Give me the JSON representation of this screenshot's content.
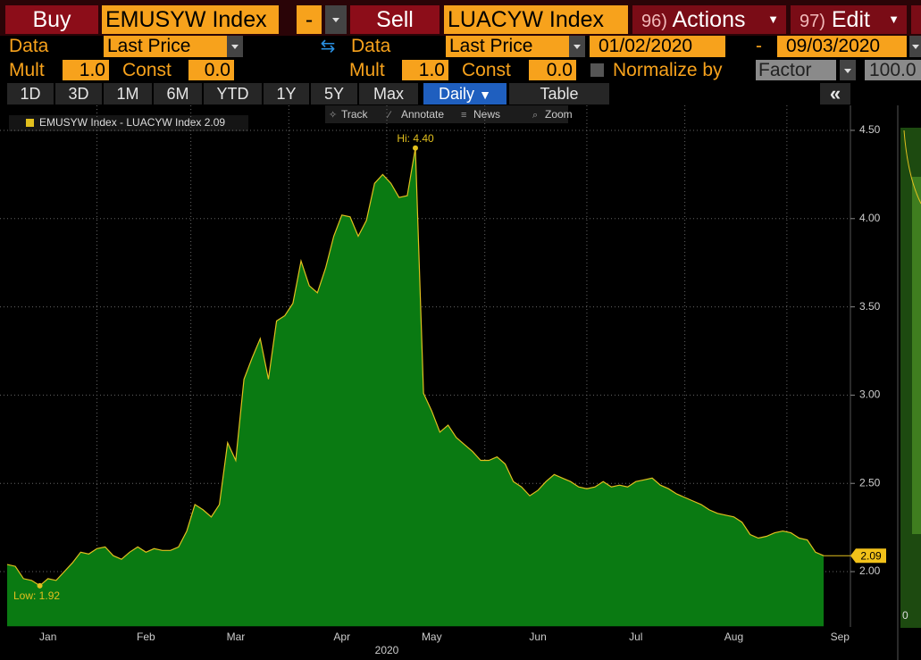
{
  "toolbar": {
    "buy": "Buy",
    "security1": "EMUSYW Index",
    "dash": "-",
    "sell": "Sell",
    "security2": "LUACYW Index",
    "actions_num": "96)",
    "actions": "Actions",
    "edit_num": "97)",
    "edit": "Edit"
  },
  "data_row": {
    "data1_label": "Data",
    "data1_field": "Last Price",
    "data2_label": "Data",
    "data2_field": "Last Price",
    "start_date": "01/02/2020",
    "date_separator": "-",
    "end_date": "09/03/2020"
  },
  "mult_row": {
    "mult1_label": "Mult",
    "mult1": "1.0",
    "const1_label": "Const",
    "const1": "0.0",
    "mult2_label": "Mult",
    "mult2": "1.0",
    "const2_label": "Const",
    "const2": "0.0",
    "normalize_label": "Normalize by",
    "normalize_field": "Factor",
    "normalize_value": "100.0"
  },
  "periods": [
    "1D",
    "3D",
    "1M",
    "6M",
    "YTD",
    "1Y",
    "5Y",
    "Max"
  ],
  "frequency": "Daily",
  "view": "Table",
  "chart_tools": [
    "Track",
    "Annotate",
    "News",
    "Zoom"
  ],
  "side_panel": {
    "label": "0"
  },
  "chart_data": {
    "type": "area",
    "categories": [
      null,
      null,
      null,
      null,
      null,
      "Jan",
      null,
      null,
      null,
      null,
      null,
      null,
      null,
      null,
      null,
      null,
      null,
      "Feb",
      null,
      null,
      null,
      null,
      null,
      null,
      null,
      null,
      null,
      null,
      "Mar",
      null,
      null,
      null,
      null,
      null,
      null,
      null,
      null,
      null,
      null,
      null,
      null,
      "Apr",
      null,
      null,
      null,
      null,
      null,
      null,
      null,
      null,
      null,
      null,
      "May",
      null,
      null,
      null,
      null,
      null,
      null,
      null,
      null,
      null,
      null,
      null,
      null,
      "Jun",
      null,
      null,
      null,
      null,
      null,
      null,
      null,
      null,
      null,
      null,
      null,
      "Jul",
      null,
      null,
      null,
      null,
      null,
      null,
      null,
      null,
      null,
      null,
      null,
      "Aug",
      null,
      null,
      null,
      null,
      null,
      null,
      null,
      null,
      null,
      null,
      null,
      null,
      "Sep"
    ],
    "x_axis_year": "2020",
    "series": [
      {
        "name": "EMUSYW Index - LUACYW Index",
        "color": "#0a7a12",
        "line_color": "#e2c01e",
        "values": [
          2.04,
          2.03,
          1.96,
          1.95,
          1.92,
          1.96,
          1.95,
          2.0,
          2.05,
          2.11,
          2.1,
          2.13,
          2.14,
          2.09,
          2.07,
          2.11,
          2.14,
          2.11,
          2.13,
          2.12,
          2.12,
          2.14,
          2.23,
          2.38,
          2.35,
          2.31,
          2.38,
          2.73,
          2.63,
          3.09,
          3.21,
          3.32,
          3.09,
          3.42,
          3.45,
          3.52,
          3.76,
          3.62,
          3.58,
          3.72,
          3.9,
          4.02,
          4.01,
          3.9,
          3.99,
          4.2,
          4.25,
          4.2,
          4.12,
          4.13,
          4.4,
          3.01,
          2.91,
          2.79,
          2.83,
          2.76,
          2.72,
          2.68,
          2.63,
          2.63,
          2.65,
          2.61,
          2.51,
          2.48,
          2.43,
          2.46,
          2.51,
          2.55,
          2.53,
          2.51,
          2.48,
          2.47,
          2.48,
          2.51,
          2.48,
          2.49,
          2.48,
          2.51,
          2.52,
          2.53,
          2.49,
          2.47,
          2.44,
          2.42,
          2.4,
          2.38,
          2.35,
          2.33,
          2.32,
          2.31,
          2.28,
          2.21,
          2.19,
          2.2,
          2.22,
          2.23,
          2.22,
          2.19,
          2.18,
          2.11,
          2.09,
          null,
          null
        ]
      }
    ],
    "last_value": 2.09,
    "annotations": {
      "high": "Hi: 4.40",
      "low": "Low: 1.92"
    },
    "ylim": [
      1.69,
      4.64
    ],
    "yticks": [
      {
        "value": 2,
        "label": "2.00"
      },
      {
        "value": 2.5,
        "label": "2.50"
      },
      {
        "value": 3,
        "label": "3.00"
      },
      {
        "value": 3.5,
        "label": "3.50"
      },
      {
        "value": 4,
        "label": "4.00"
      },
      {
        "value": 4.5,
        "label": "4.50"
      }
    ],
    "grid": true
  }
}
